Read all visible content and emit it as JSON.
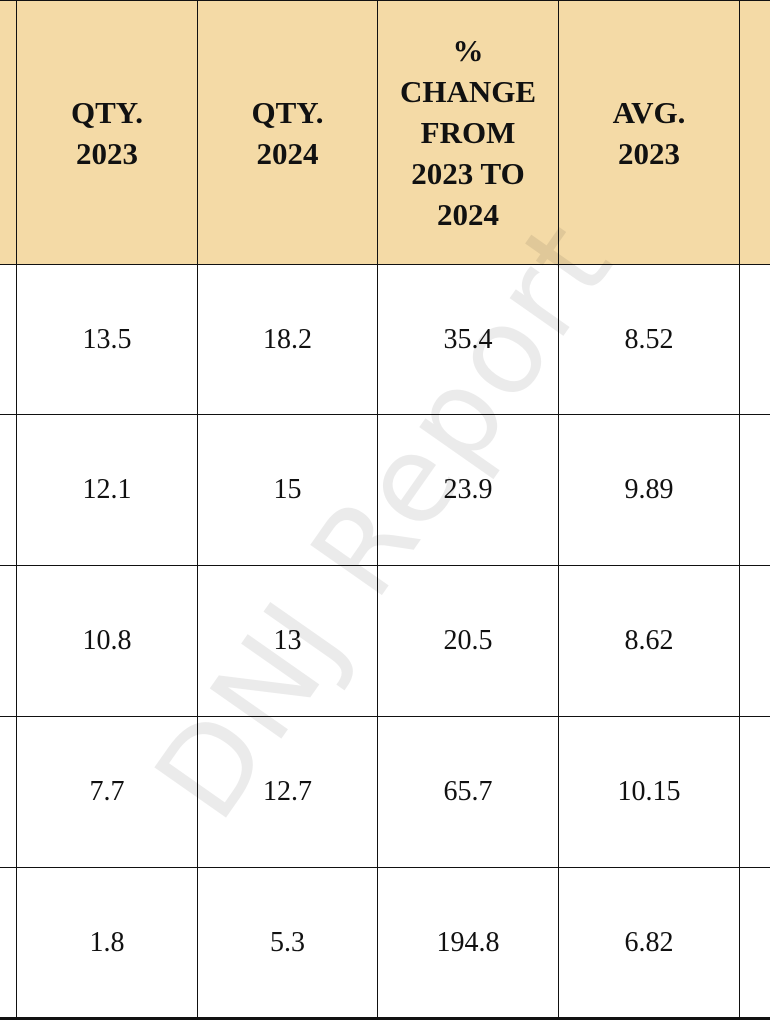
{
  "table": {
    "header": [
      [
        "QTY.",
        "2023"
      ],
      [
        "QTY.",
        "2024"
      ],
      [
        "%",
        "CHANGE",
        "FROM",
        "2023 TO",
        "2024"
      ],
      [
        "AVG.",
        "2023"
      ]
    ],
    "rows": [
      [
        "13.5",
        "18.2",
        "35.4",
        "8.52"
      ],
      [
        "12.1",
        "15",
        "23.9",
        "9.89"
      ],
      [
        "10.8",
        "13",
        "20.5",
        "8.62"
      ],
      [
        "7.7",
        "12.7",
        "65.7",
        "10.15"
      ],
      [
        "1.8",
        "5.3",
        "194.8",
        "6.82"
      ]
    ]
  },
  "watermark": "DNJ Report"
}
